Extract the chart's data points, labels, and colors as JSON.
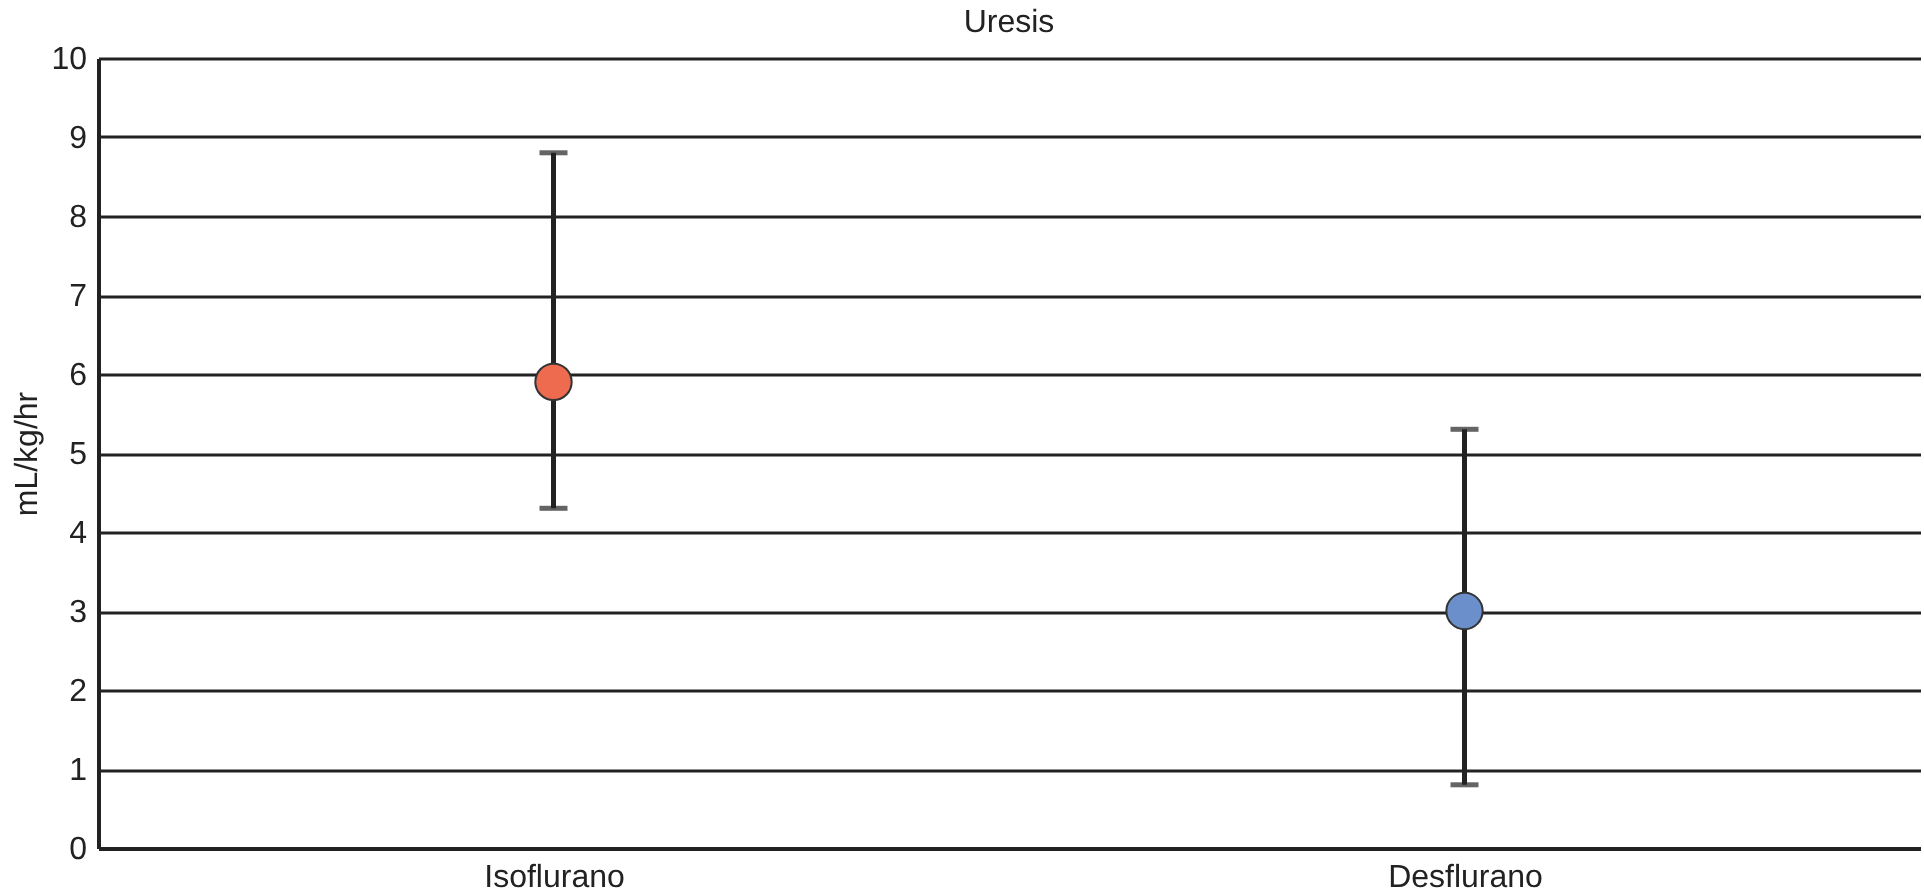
{
  "chart_data": {
    "type": "scatter",
    "title": "Uresis",
    "ylabel": "mL/kg/hr",
    "categories": [
      "Isoflurano",
      "Desflurano"
    ],
    "values": [
      5.9,
      3.0
    ],
    "colors": [
      "#ee6b4f",
      "#6a8fcb"
    ],
    "errors": [
      [
        4.3,
        8.8
      ],
      [
        0.8,
        5.3
      ]
    ],
    "ylim": [
      0,
      10
    ],
    "yticks": [
      0,
      1,
      2,
      3,
      4,
      5,
      6,
      7,
      8,
      9,
      10
    ],
    "grid": "y",
    "marker": "circle"
  }
}
